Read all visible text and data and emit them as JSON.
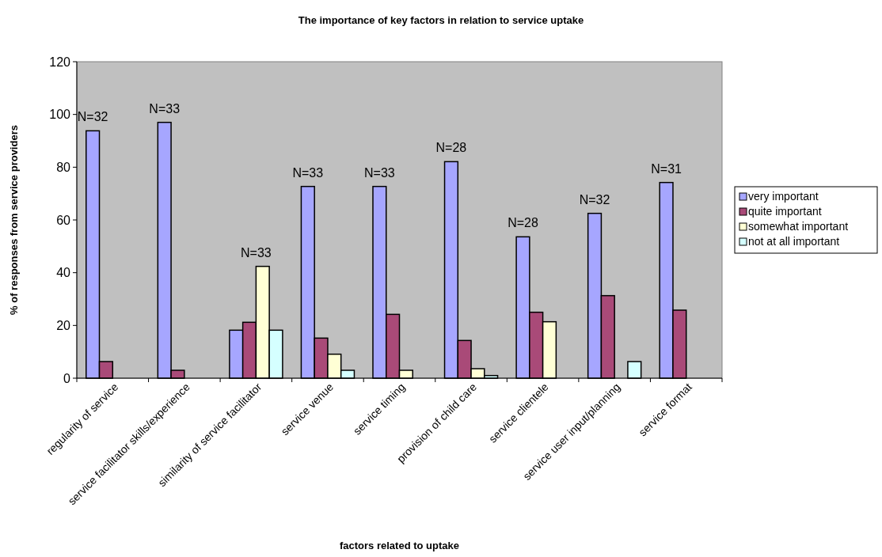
{
  "chart_data": {
    "type": "bar",
    "title": "The importance of key factors in relation to service uptake",
    "xlabel": "factors related to uptake",
    "ylabel": "% of responses from service providers",
    "categories": [
      "regularity of service",
      "service facilitator skills/experience",
      "similarity of service facilitator",
      "service venue",
      "service timing",
      "provision of child care",
      "service clientele",
      "service user input/planning",
      "service format"
    ],
    "series": [
      {
        "name": "very important",
        "color": "#a6a6ff",
        "values": [
          93.8,
          97,
          18.2,
          72.7,
          72.7,
          82.1,
          53.6,
          62.5,
          74.2
        ]
      },
      {
        "name": "quite important",
        "color": "#a94a78",
        "values": [
          6.3,
          3,
          21.2,
          15.2,
          24.2,
          14.3,
          25,
          31.3,
          25.8
        ]
      },
      {
        "name": "somewhat important",
        "color": "#ffffd5",
        "values": [
          0,
          0,
          42.4,
          9.1,
          3,
          3.6,
          21.4,
          0,
          0
        ]
      },
      {
        "name": "not at all important",
        "color": "#d5ffff",
        "values": [
          0,
          0,
          18.2,
          3,
          0,
          1,
          0,
          6.3,
          0
        ]
      }
    ],
    "annotations": [
      "N=32",
      "N=33",
      "N=33",
      "N=33",
      "N=33",
      "N=28",
      "N=28",
      "N=32",
      "N=31"
    ],
    "ylim": [
      0,
      120
    ],
    "yticks": [
      0,
      20,
      40,
      60,
      80,
      100,
      120
    ],
    "grid": false,
    "legend": "right"
  }
}
